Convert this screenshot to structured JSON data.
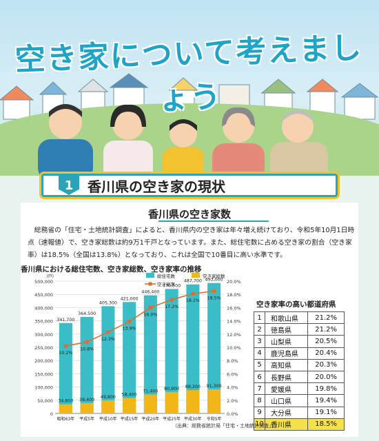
{
  "header": {
    "title": "空き家について考えましょう"
  },
  "section": {
    "number": "1",
    "title": "香川県の空き家の現状"
  },
  "panel": {
    "title": "香川県の空き家数",
    "paragraph": "総務省の「住宅・土地統計調査」によると、香川県内の空き家は年々増え続けており、令和5年10月1日時点（速報値）で、空き家総数は約9万1千戸となっています。また、総住宅数に占める空き家の割合（空き家率）は18.5%（全国は13.8%）となっており、これは全国で10番目に高い水準です。"
  },
  "chart_data": {
    "type": "bar",
    "title": "香川県における総住宅数、空き家総数、空き家率の推移",
    "categories": [
      "昭和63年",
      "平成5年",
      "平成10年",
      "平成15年",
      "平成20年",
      "平成25年",
      "平成30年",
      "令和5年"
    ],
    "series": [
      {
        "name": "総住宅数",
        "values": [
          341700,
          364500,
          405300,
          421000,
          446400,
          470500,
          487700,
          493000
        ],
        "labels": [
          "341,700",
          "364,500",
          "405,300",
          "421,000",
          "446,400",
          "470,500",
          "487,700",
          "493,000"
        ],
        "color": "#3bbdc8"
      },
      {
        "name": "空き家総数",
        "values": [
          34800,
          39400,
          49800,
          58400,
          71400,
          80900,
          88200,
          91300
        ],
        "labels": [
          "34,800",
          "39,400",
          "49,800",
          "58,400",
          "71,400",
          "80,900",
          "88,200",
          "91,300"
        ],
        "color": "#f2b618"
      },
      {
        "name": "空き家率",
        "values": [
          10.2,
          10.8,
          12.3,
          13.9,
          16.0,
          17.2,
          18.1,
          18.5
        ],
        "labels": [
          "10.2%",
          "10.8%",
          "12.3%",
          "13.9%",
          "16.0%",
          "17.2%",
          "18.1%",
          "18.5%"
        ],
        "color": "#e06d2e"
      }
    ],
    "y_left": {
      "unit": "(戸)",
      "ylim": [
        0,
        500000
      ],
      "ticks": [
        "0",
        "50,000",
        "100,000",
        "150,000",
        "200,000",
        "250,000",
        "300,000",
        "350,000",
        "400,000",
        "450,000",
        "500,000"
      ]
    },
    "y_right": {
      "ylim": [
        0,
        20
      ],
      "ticks": [
        "0.0%",
        "2.0%",
        "4.0%",
        "6.0%",
        "8.0%",
        "10.0%",
        "12.0%",
        "14.0%",
        "16.0%",
        "18.0%",
        "20.0%"
      ]
    },
    "grid": true,
    "legend": "top-right",
    "source": "（出典：総務省統計局「住宅・土地統計調査」）"
  },
  "ranking": {
    "title": "空き家率の高い都道府県",
    "rows": [
      {
        "rank": "1",
        "pref": "和歌山県",
        "value": "21.2%"
      },
      {
        "rank": "2",
        "pref": "徳島県",
        "value": "21.2%"
      },
      {
        "rank": "3",
        "pref": "山梨県",
        "value": "20.5%"
      },
      {
        "rank": "4",
        "pref": "鹿児島県",
        "value": "20.4%"
      },
      {
        "rank": "5",
        "pref": "高知県",
        "value": "20.3%"
      },
      {
        "rank": "6",
        "pref": "長野県",
        "value": "20.0%"
      },
      {
        "rank": "7",
        "pref": "愛媛県",
        "value": "19.8%"
      },
      {
        "rank": "8",
        "pref": "山口県",
        "value": "19.4%"
      },
      {
        "rank": "9",
        "pref": "大分県",
        "value": "19.1%"
      },
      {
        "rank": "10",
        "pref": "香川県",
        "value": "18.5%"
      }
    ]
  }
}
